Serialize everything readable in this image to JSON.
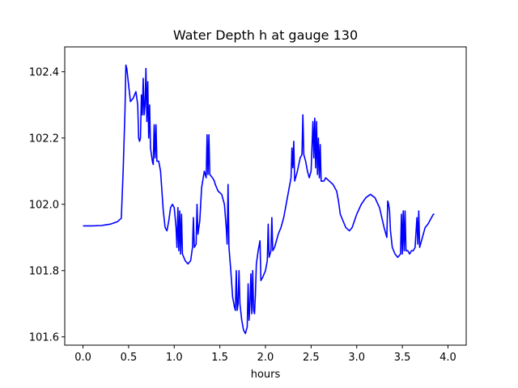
{
  "chart_data": {
    "type": "line",
    "title": "Water Depth h at gauge 130",
    "xlabel": "hours",
    "ylabel": "",
    "xlim": [
      -0.2,
      4.2
    ],
    "ylim": [
      101.575,
      102.475
    ],
    "x_ticks": [
      0.0,
      0.5,
      1.0,
      1.5,
      2.0,
      2.5,
      3.0,
      3.5,
      4.0
    ],
    "x_tick_labels": [
      "0.0",
      "0.5",
      "1.0",
      "1.5",
      "2.0",
      "2.5",
      "3.0",
      "3.5",
      "4.0"
    ],
    "y_ticks": [
      101.6,
      101.8,
      102.0,
      102.2,
      102.4
    ],
    "y_tick_labels": [
      "101.6",
      "101.8",
      "102.0",
      "102.2",
      "102.4"
    ],
    "grid": false,
    "legend": "none",
    "series": [
      {
        "color": "#0000ff",
        "points": [
          [
            0.0,
            101.935
          ],
          [
            0.1,
            101.935
          ],
          [
            0.2,
            101.936
          ],
          [
            0.3,
            101.94
          ],
          [
            0.38,
            101.948
          ],
          [
            0.42,
            101.958
          ],
          [
            0.44,
            102.1
          ],
          [
            0.46,
            102.28
          ],
          [
            0.47,
            102.42
          ],
          [
            0.48,
            102.41
          ],
          [
            0.5,
            102.36
          ],
          [
            0.52,
            102.31
          ],
          [
            0.55,
            102.32
          ],
          [
            0.58,
            102.34
          ],
          [
            0.6,
            102.3
          ],
          [
            0.61,
            102.2
          ],
          [
            0.62,
            102.19
          ],
          [
            0.63,
            102.2
          ],
          [
            0.64,
            102.33
          ],
          [
            0.65,
            102.27
          ],
          [
            0.66,
            102.38
          ],
          [
            0.67,
            102.27
          ],
          [
            0.68,
            102.3
          ],
          [
            0.69,
            102.41
          ],
          [
            0.7,
            102.25
          ],
          [
            0.71,
            102.37
          ],
          [
            0.72,
            102.2
          ],
          [
            0.73,
            102.3
          ],
          [
            0.74,
            102.17
          ],
          [
            0.76,
            102.13
          ],
          [
            0.77,
            102.12
          ],
          [
            0.78,
            102.24
          ],
          [
            0.79,
            102.14
          ],
          [
            0.8,
            102.24
          ],
          [
            0.81,
            102.13
          ],
          [
            0.83,
            102.13
          ],
          [
            0.85,
            102.1
          ],
          [
            0.88,
            101.98
          ],
          [
            0.9,
            101.93
          ],
          [
            0.92,
            101.92
          ],
          [
            0.94,
            101.95
          ],
          [
            0.96,
            101.99
          ],
          [
            0.98,
            102.0
          ],
          [
            1.0,
            101.99
          ],
          [
            1.02,
            101.93
          ],
          [
            1.03,
            101.87
          ],
          [
            1.04,
            101.99
          ],
          [
            1.05,
            101.86
          ],
          [
            1.06,
            101.98
          ],
          [
            1.07,
            101.85
          ],
          [
            1.08,
            101.97
          ],
          [
            1.09,
            101.85
          ],
          [
            1.12,
            101.83
          ],
          [
            1.15,
            101.82
          ],
          [
            1.18,
            101.83
          ],
          [
            1.2,
            101.87
          ],
          [
            1.21,
            101.96
          ],
          [
            1.22,
            101.87
          ],
          [
            1.24,
            101.88
          ],
          [
            1.25,
            102.0
          ],
          [
            1.26,
            101.91
          ],
          [
            1.28,
            101.95
          ],
          [
            1.3,
            102.05
          ],
          [
            1.33,
            102.1
          ],
          [
            1.35,
            102.08
          ],
          [
            1.36,
            102.21
          ],
          [
            1.37,
            102.09
          ],
          [
            1.38,
            102.21
          ],
          [
            1.39,
            102.09
          ],
          [
            1.42,
            102.08
          ],
          [
            1.44,
            102.07
          ],
          [
            1.45,
            102.06
          ],
          [
            1.48,
            102.04
          ],
          [
            1.52,
            102.03
          ],
          [
            1.55,
            102.0
          ],
          [
            1.57,
            101.93
          ],
          [
            1.58,
            101.88
          ],
          [
            1.59,
            102.06
          ],
          [
            1.6,
            101.87
          ],
          [
            1.62,
            101.8
          ],
          [
            1.64,
            101.72
          ],
          [
            1.66,
            101.69
          ],
          [
            1.67,
            101.68
          ],
          [
            1.68,
            101.8
          ],
          [
            1.69,
            101.68
          ],
          [
            1.7,
            101.7
          ],
          [
            1.71,
            101.8
          ],
          [
            1.72,
            101.7
          ],
          [
            1.74,
            101.65
          ],
          [
            1.76,
            101.62
          ],
          [
            1.78,
            101.61
          ],
          [
            1.8,
            101.63
          ],
          [
            1.81,
            101.76
          ],
          [
            1.82,
            101.65
          ],
          [
            1.83,
            101.7
          ],
          [
            1.84,
            101.79
          ],
          [
            1.85,
            101.67
          ],
          [
            1.86,
            101.8
          ],
          [
            1.87,
            101.68
          ],
          [
            1.88,
            101.67
          ],
          [
            1.89,
            101.73
          ],
          [
            1.9,
            101.82
          ],
          [
            1.92,
            101.86
          ],
          [
            1.94,
            101.89
          ],
          [
            1.95,
            101.77
          ],
          [
            1.97,
            101.78
          ],
          [
            2.0,
            101.8
          ],
          [
            2.02,
            101.83
          ],
          [
            2.03,
            101.94
          ],
          [
            2.04,
            101.84
          ],
          [
            2.06,
            101.86
          ],
          [
            2.07,
            101.96
          ],
          [
            2.08,
            101.86
          ],
          [
            2.1,
            101.87
          ],
          [
            2.12,
            101.89
          ],
          [
            2.14,
            101.91
          ],
          [
            2.17,
            101.93
          ],
          [
            2.2,
            101.96
          ],
          [
            2.24,
            102.02
          ],
          [
            2.28,
            102.08
          ],
          [
            2.29,
            102.17
          ],
          [
            2.3,
            102.11
          ],
          [
            2.31,
            102.19
          ],
          [
            2.32,
            102.07
          ],
          [
            2.35,
            102.1
          ],
          [
            2.38,
            102.14
          ],
          [
            2.4,
            102.15
          ],
          [
            2.41,
            102.27
          ],
          [
            2.42,
            102.15
          ],
          [
            2.44,
            102.13
          ],
          [
            2.46,
            102.1
          ],
          [
            2.48,
            102.08
          ],
          [
            2.5,
            102.1
          ],
          [
            2.52,
            102.25
          ],
          [
            2.53,
            102.14
          ],
          [
            2.54,
            102.26
          ],
          [
            2.55,
            102.11
          ],
          [
            2.56,
            102.25
          ],
          [
            2.57,
            102.09
          ],
          [
            2.58,
            102.2
          ],
          [
            2.59,
            102.08
          ],
          [
            2.6,
            102.18
          ],
          [
            2.61,
            102.07
          ],
          [
            2.64,
            102.07
          ],
          [
            2.66,
            102.08
          ],
          [
            2.7,
            102.07
          ],
          [
            2.74,
            102.06
          ],
          [
            2.78,
            102.04
          ],
          [
            2.8,
            102.01
          ],
          [
            2.82,
            101.97
          ],
          [
            2.85,
            101.95
          ],
          [
            2.88,
            101.93
          ],
          [
            2.92,
            101.92
          ],
          [
            2.95,
            101.93
          ],
          [
            3.0,
            101.97
          ],
          [
            3.05,
            102.0
          ],
          [
            3.1,
            102.02
          ],
          [
            3.15,
            102.03
          ],
          [
            3.2,
            102.02
          ],
          [
            3.25,
            101.99
          ],
          [
            3.3,
            101.93
          ],
          [
            3.33,
            101.9
          ],
          [
            3.34,
            102.01
          ],
          [
            3.35,
            102.0
          ],
          [
            3.36,
            101.98
          ],
          [
            3.37,
            101.92
          ],
          [
            3.39,
            101.87
          ],
          [
            3.42,
            101.85
          ],
          [
            3.45,
            101.84
          ],
          [
            3.48,
            101.85
          ],
          [
            3.49,
            101.97
          ],
          [
            3.5,
            101.85
          ],
          [
            3.51,
            101.98
          ],
          [
            3.52,
            101.86
          ],
          [
            3.53,
            101.98
          ],
          [
            3.54,
            101.86
          ],
          [
            3.56,
            101.86
          ],
          [
            3.58,
            101.85
          ],
          [
            3.6,
            101.86
          ],
          [
            3.62,
            101.86
          ],
          [
            3.64,
            101.87
          ],
          [
            3.66,
            101.96
          ],
          [
            3.67,
            101.88
          ],
          [
            3.68,
            101.98
          ],
          [
            3.69,
            101.87
          ],
          [
            3.7,
            101.88
          ],
          [
            3.72,
            101.9
          ],
          [
            3.75,
            101.93
          ],
          [
            3.78,
            101.94
          ],
          [
            3.8,
            101.95
          ],
          [
            3.82,
            101.96
          ],
          [
            3.84,
            101.97
          ],
          [
            3.85,
            101.97
          ]
        ]
      }
    ]
  }
}
